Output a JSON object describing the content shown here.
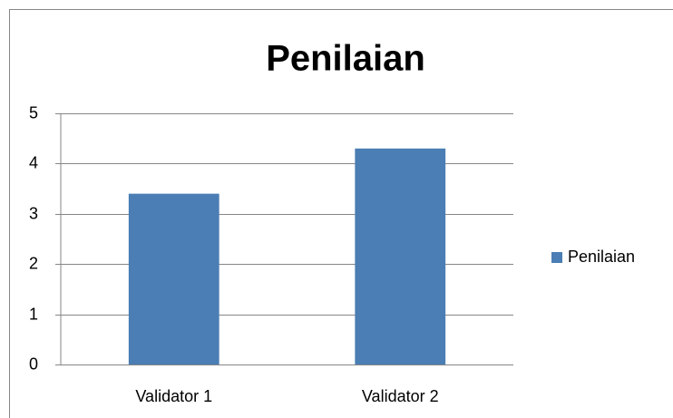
{
  "chart_data": {
    "type": "bar",
    "title": "Penilaian",
    "categories": [
      "Validator 1",
      "Validator 2"
    ],
    "series": [
      {
        "name": "Penilaian",
        "color": "#4a7eb4",
        "values": [
          3.4,
          4.3
        ]
      }
    ],
    "ylim": [
      0,
      5
    ],
    "yticks": [
      0,
      1,
      2,
      3,
      4,
      5
    ],
    "grid": true,
    "legend": "right"
  }
}
